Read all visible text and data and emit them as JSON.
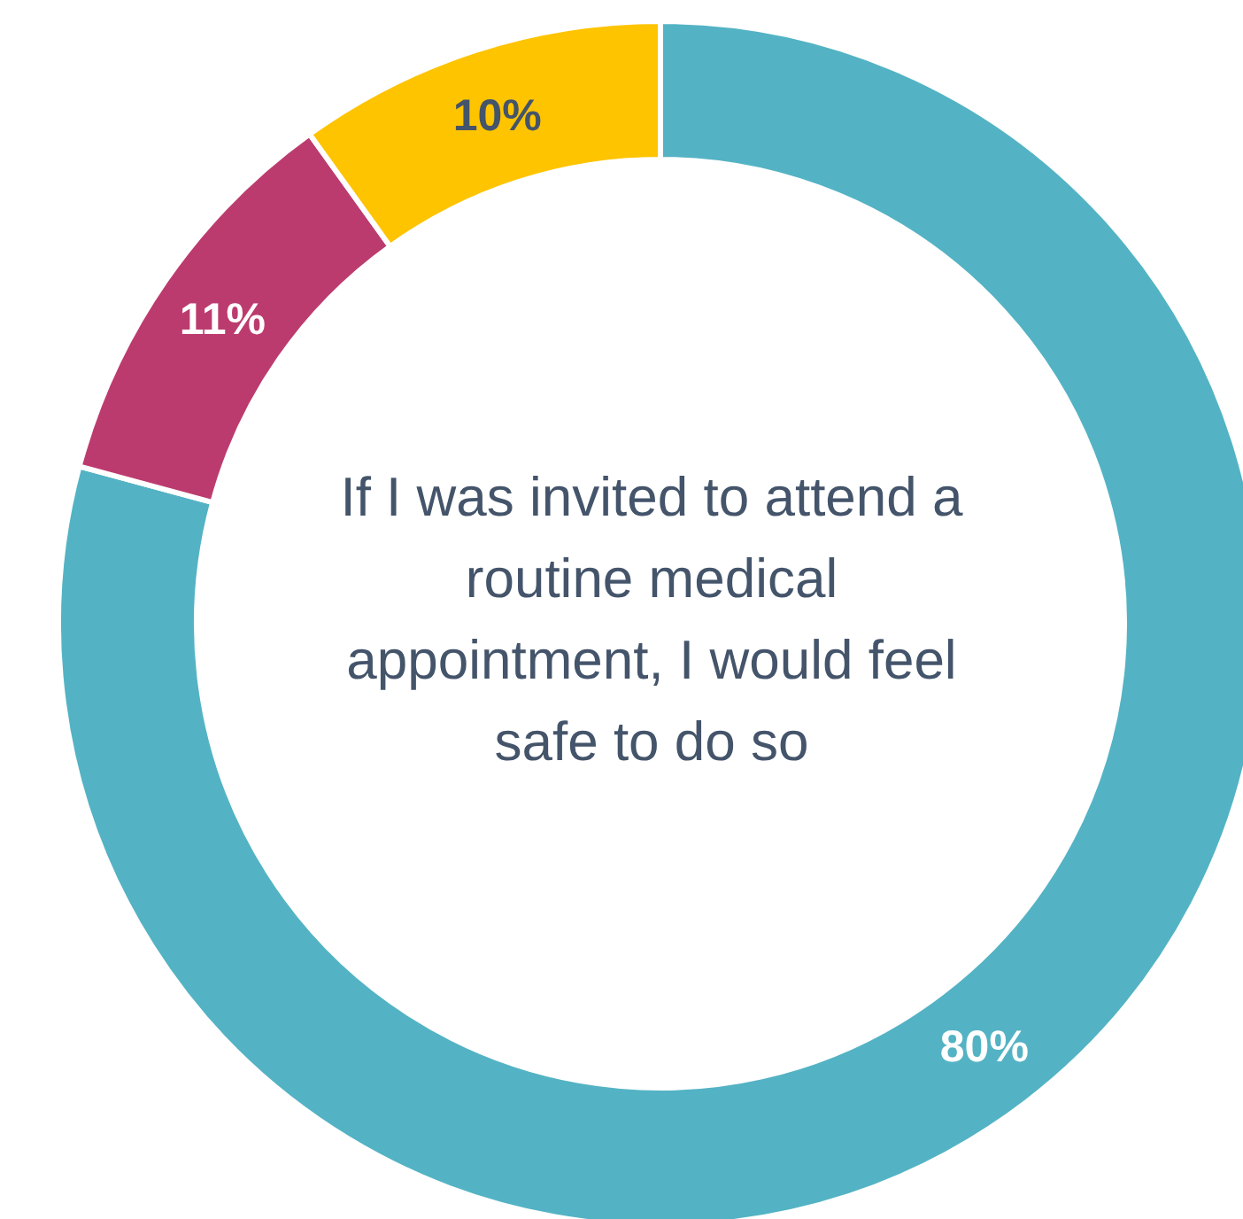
{
  "chart_data": {
    "type": "donut",
    "title": "If I was invited to attend a routine medical appointment, I would feel safe to do so",
    "categories": [
      null,
      null,
      null
    ],
    "values": [
      80,
      11,
      10
    ],
    "colors": [
      "#53b3c4",
      "#bc3b6e",
      "#fec400"
    ],
    "value_labels": [
      "80%",
      "11%",
      "10%"
    ],
    "legend": false
  }
}
